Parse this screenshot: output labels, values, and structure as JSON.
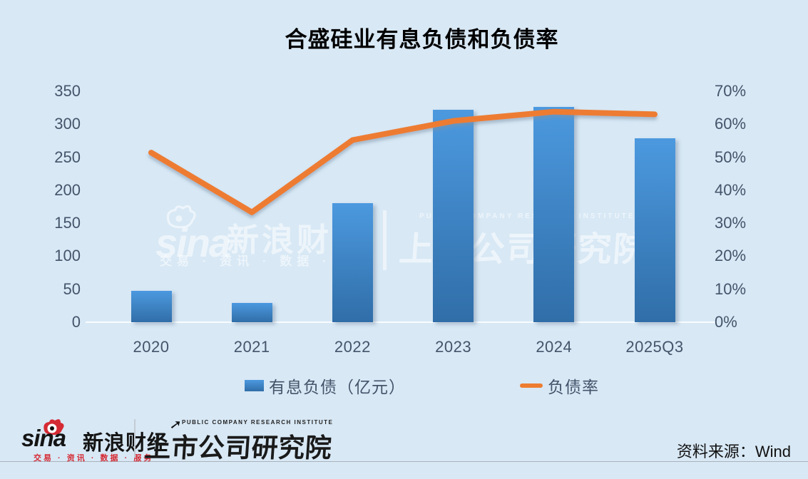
{
  "title": "合盛硅业有息负债和负债率",
  "chart_data": {
    "type": "bar+line combo",
    "categories": [
      "2020",
      "2021",
      "2022",
      "2023",
      "2024",
      "2025Q3"
    ],
    "series": [
      {
        "name": "有息负债（亿元）",
        "type": "bar",
        "axis": "left",
        "values": [
          47,
          29,
          180,
          322,
          326,
          279
        ],
        "color_top": "#4c99df",
        "color_bottom": "#306ea8"
      },
      {
        "name": "负债率",
        "type": "line",
        "axis": "right",
        "values": [
          51.4,
          33.3,
          55.2,
          61.0,
          63.8,
          63.0
        ],
        "color": "#ed7c31"
      }
    ],
    "left_axis": {
      "ticks": [
        "350",
        "300",
        "250",
        "200",
        "150",
        "100",
        "50",
        "0"
      ],
      "min": 0,
      "max": 350
    },
    "right_axis": {
      "ticks": [
        "70%",
        "60%",
        "50%",
        "40%",
        "30%",
        "20%",
        "10%",
        "0%"
      ],
      "min": 0,
      "max": 70
    },
    "grid": "off",
    "legend_position": "bottom"
  },
  "legend": {
    "bar_label": "有息负债（亿元）",
    "line_label": "负债率"
  },
  "watermark": {
    "sina_word": "sina",
    "brand": "新浪财经",
    "tagline": "交易 · 资讯 · 数据 · 服务",
    "institute_en": "PUBLIC COMPANY RESEARCH INSTITUTE",
    "institute": "上市公司研究院"
  },
  "footer": {
    "sina_word": "sina",
    "brand": "新浪财经",
    "tagline": "交易 · 资讯 · 数据 · 服务",
    "institute_en": "PUBLIC COMPANY RESEARCH INSTITUTE",
    "institute": "上市公司研究院",
    "arrow_glyph": "➚",
    "source": "资料来源：Wind"
  },
  "colors": {
    "background": "#d8e8f5",
    "axis_text": "#44546a",
    "bar_top": "#4c99df",
    "bar_bottom": "#306ea8",
    "line": "#ed7c31",
    "sina_red": "#d52b34"
  }
}
